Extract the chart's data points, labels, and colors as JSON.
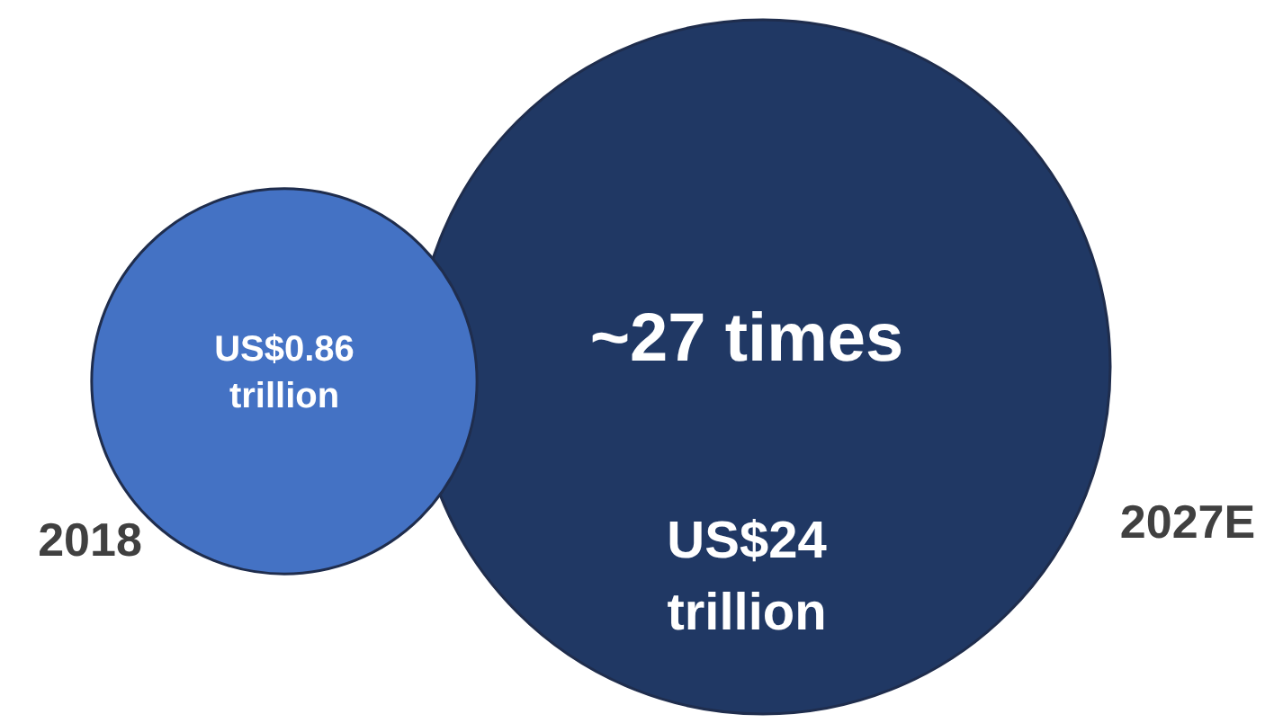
{
  "chart_data": {
    "type": "other",
    "categories": [
      "2018",
      "2027E"
    ],
    "values": [
      0.86,
      24
    ],
    "value_labels": [
      "US$0.86 trillion",
      "US$24 trillion"
    ],
    "colors": [
      "#4472c4",
      "#203864"
    ],
    "annotations": [
      "~27 times"
    ]
  }
}
